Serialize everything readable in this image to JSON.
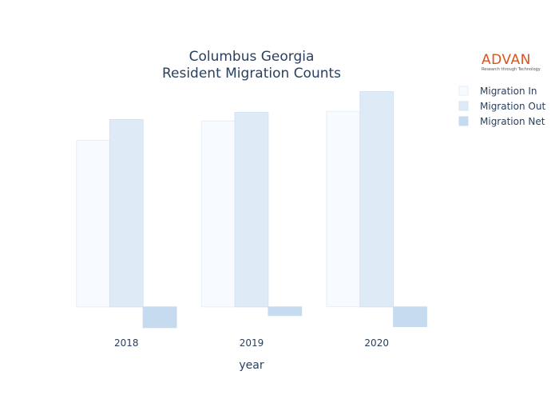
{
  "logo": {
    "name": "ADVAN",
    "tagline": "Research through Technology"
  },
  "chart_data": {
    "type": "bar",
    "title_lines": [
      "Columbus Georgia",
      "Resident Migration Counts"
    ],
    "xlabel": "year",
    "ylabel": "",
    "categories": [
      "2018",
      "2019",
      "2020"
    ],
    "series": [
      {
        "name": "Migration In",
        "values": [
          3450,
          3850,
          4050
        ],
        "color": "#f7fbff",
        "stroke": "#e6eef8"
      },
      {
        "name": "Migration Out",
        "values": [
          3880,
          4030,
          4460
        ],
        "color": "#deebf7",
        "stroke": "#d3e3f3"
      },
      {
        "name": "Migration Net",
        "values": [
          -430,
          -180,
          -410
        ],
        "color": "#c6dbef",
        "stroke": "#c6dbef"
      }
    ],
    "ylim": [
      -600,
      4700
    ],
    "y_axis_visible": false,
    "grid": false,
    "legend_position": "top-right"
  }
}
